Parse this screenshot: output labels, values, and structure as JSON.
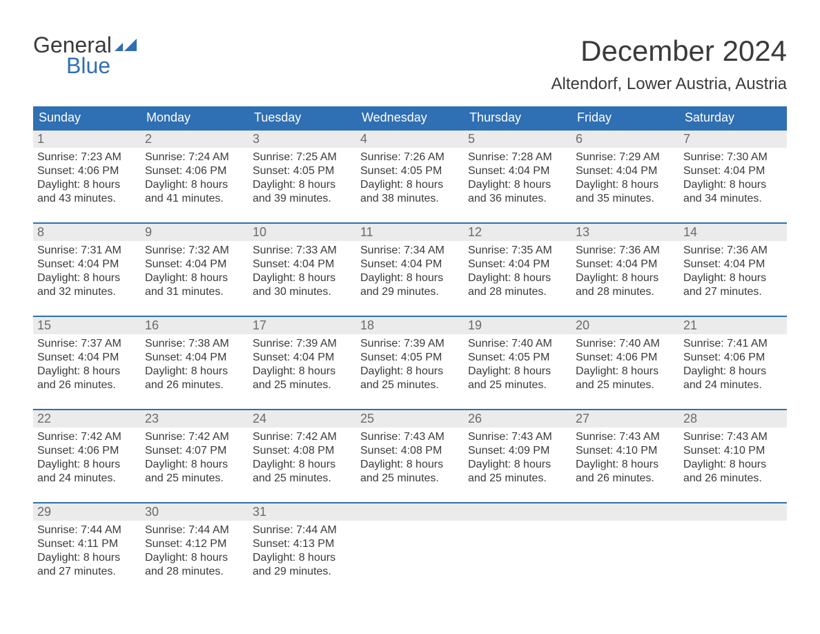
{
  "logo": {
    "text_general": "General",
    "text_blue": "Blue",
    "flag_color": "#2f6fb3"
  },
  "title": "December 2024",
  "location": "Altendorf, Lower Austria, Austria",
  "colors": {
    "header_bg": "#2f6fb3",
    "header_text": "#ffffff",
    "daynum_bg": "#ebebeb",
    "daynum_text": "#6a6a6a",
    "body_text": "#3a3a3a",
    "page_bg": "#ffffff",
    "rule": "#2f6fb3"
  },
  "typography": {
    "title_fontsize": 42,
    "location_fontsize": 24,
    "weekday_fontsize": 18,
    "daynum_fontsize": 18,
    "cell_fontsize": 16
  },
  "calendar": {
    "type": "table",
    "weekdays": [
      "Sunday",
      "Monday",
      "Tuesday",
      "Wednesday",
      "Thursday",
      "Friday",
      "Saturday"
    ],
    "weeks": [
      [
        {
          "day": "1",
          "sunrise": "Sunrise: 7:23 AM",
          "sunset": "Sunset: 4:06 PM",
          "dl1": "Daylight: 8 hours",
          "dl2": "and 43 minutes."
        },
        {
          "day": "2",
          "sunrise": "Sunrise: 7:24 AM",
          "sunset": "Sunset: 4:06 PM",
          "dl1": "Daylight: 8 hours",
          "dl2": "and 41 minutes."
        },
        {
          "day": "3",
          "sunrise": "Sunrise: 7:25 AM",
          "sunset": "Sunset: 4:05 PM",
          "dl1": "Daylight: 8 hours",
          "dl2": "and 39 minutes."
        },
        {
          "day": "4",
          "sunrise": "Sunrise: 7:26 AM",
          "sunset": "Sunset: 4:05 PM",
          "dl1": "Daylight: 8 hours",
          "dl2": "and 38 minutes."
        },
        {
          "day": "5",
          "sunrise": "Sunrise: 7:28 AM",
          "sunset": "Sunset: 4:04 PM",
          "dl1": "Daylight: 8 hours",
          "dl2": "and 36 minutes."
        },
        {
          "day": "6",
          "sunrise": "Sunrise: 7:29 AM",
          "sunset": "Sunset: 4:04 PM",
          "dl1": "Daylight: 8 hours",
          "dl2": "and 35 minutes."
        },
        {
          "day": "7",
          "sunrise": "Sunrise: 7:30 AM",
          "sunset": "Sunset: 4:04 PM",
          "dl1": "Daylight: 8 hours",
          "dl2": "and 34 minutes."
        }
      ],
      [
        {
          "day": "8",
          "sunrise": "Sunrise: 7:31 AM",
          "sunset": "Sunset: 4:04 PM",
          "dl1": "Daylight: 8 hours",
          "dl2": "and 32 minutes."
        },
        {
          "day": "9",
          "sunrise": "Sunrise: 7:32 AM",
          "sunset": "Sunset: 4:04 PM",
          "dl1": "Daylight: 8 hours",
          "dl2": "and 31 minutes."
        },
        {
          "day": "10",
          "sunrise": "Sunrise: 7:33 AM",
          "sunset": "Sunset: 4:04 PM",
          "dl1": "Daylight: 8 hours",
          "dl2": "and 30 minutes."
        },
        {
          "day": "11",
          "sunrise": "Sunrise: 7:34 AM",
          "sunset": "Sunset: 4:04 PM",
          "dl1": "Daylight: 8 hours",
          "dl2": "and 29 minutes."
        },
        {
          "day": "12",
          "sunrise": "Sunrise: 7:35 AM",
          "sunset": "Sunset: 4:04 PM",
          "dl1": "Daylight: 8 hours",
          "dl2": "and 28 minutes."
        },
        {
          "day": "13",
          "sunrise": "Sunrise: 7:36 AM",
          "sunset": "Sunset: 4:04 PM",
          "dl1": "Daylight: 8 hours",
          "dl2": "and 28 minutes."
        },
        {
          "day": "14",
          "sunrise": "Sunrise: 7:36 AM",
          "sunset": "Sunset: 4:04 PM",
          "dl1": "Daylight: 8 hours",
          "dl2": "and 27 minutes."
        }
      ],
      [
        {
          "day": "15",
          "sunrise": "Sunrise: 7:37 AM",
          "sunset": "Sunset: 4:04 PM",
          "dl1": "Daylight: 8 hours",
          "dl2": "and 26 minutes."
        },
        {
          "day": "16",
          "sunrise": "Sunrise: 7:38 AM",
          "sunset": "Sunset: 4:04 PM",
          "dl1": "Daylight: 8 hours",
          "dl2": "and 26 minutes."
        },
        {
          "day": "17",
          "sunrise": "Sunrise: 7:39 AM",
          "sunset": "Sunset: 4:04 PM",
          "dl1": "Daylight: 8 hours",
          "dl2": "and 25 minutes."
        },
        {
          "day": "18",
          "sunrise": "Sunrise: 7:39 AM",
          "sunset": "Sunset: 4:05 PM",
          "dl1": "Daylight: 8 hours",
          "dl2": "and 25 minutes."
        },
        {
          "day": "19",
          "sunrise": "Sunrise: 7:40 AM",
          "sunset": "Sunset: 4:05 PM",
          "dl1": "Daylight: 8 hours",
          "dl2": "and 25 minutes."
        },
        {
          "day": "20",
          "sunrise": "Sunrise: 7:40 AM",
          "sunset": "Sunset: 4:06 PM",
          "dl1": "Daylight: 8 hours",
          "dl2": "and 25 minutes."
        },
        {
          "day": "21",
          "sunrise": "Sunrise: 7:41 AM",
          "sunset": "Sunset: 4:06 PM",
          "dl1": "Daylight: 8 hours",
          "dl2": "and 24 minutes."
        }
      ],
      [
        {
          "day": "22",
          "sunrise": "Sunrise: 7:42 AM",
          "sunset": "Sunset: 4:06 PM",
          "dl1": "Daylight: 8 hours",
          "dl2": "and 24 minutes."
        },
        {
          "day": "23",
          "sunrise": "Sunrise: 7:42 AM",
          "sunset": "Sunset: 4:07 PM",
          "dl1": "Daylight: 8 hours",
          "dl2": "and 25 minutes."
        },
        {
          "day": "24",
          "sunrise": "Sunrise: 7:42 AM",
          "sunset": "Sunset: 4:08 PM",
          "dl1": "Daylight: 8 hours",
          "dl2": "and 25 minutes."
        },
        {
          "day": "25",
          "sunrise": "Sunrise: 7:43 AM",
          "sunset": "Sunset: 4:08 PM",
          "dl1": "Daylight: 8 hours",
          "dl2": "and 25 minutes."
        },
        {
          "day": "26",
          "sunrise": "Sunrise: 7:43 AM",
          "sunset": "Sunset: 4:09 PM",
          "dl1": "Daylight: 8 hours",
          "dl2": "and 25 minutes."
        },
        {
          "day": "27",
          "sunrise": "Sunrise: 7:43 AM",
          "sunset": "Sunset: 4:10 PM",
          "dl1": "Daylight: 8 hours",
          "dl2": "and 26 minutes."
        },
        {
          "day": "28",
          "sunrise": "Sunrise: 7:43 AM",
          "sunset": "Sunset: 4:10 PM",
          "dl1": "Daylight: 8 hours",
          "dl2": "and 26 minutes."
        }
      ],
      [
        {
          "day": "29",
          "sunrise": "Sunrise: 7:44 AM",
          "sunset": "Sunset: 4:11 PM",
          "dl1": "Daylight: 8 hours",
          "dl2": "and 27 minutes."
        },
        {
          "day": "30",
          "sunrise": "Sunrise: 7:44 AM",
          "sunset": "Sunset: 4:12 PM",
          "dl1": "Daylight: 8 hours",
          "dl2": "and 28 minutes."
        },
        {
          "day": "31",
          "sunrise": "Sunrise: 7:44 AM",
          "sunset": "Sunset: 4:13 PM",
          "dl1": "Daylight: 8 hours",
          "dl2": "and 29 minutes."
        },
        null,
        null,
        null,
        null
      ]
    ]
  }
}
